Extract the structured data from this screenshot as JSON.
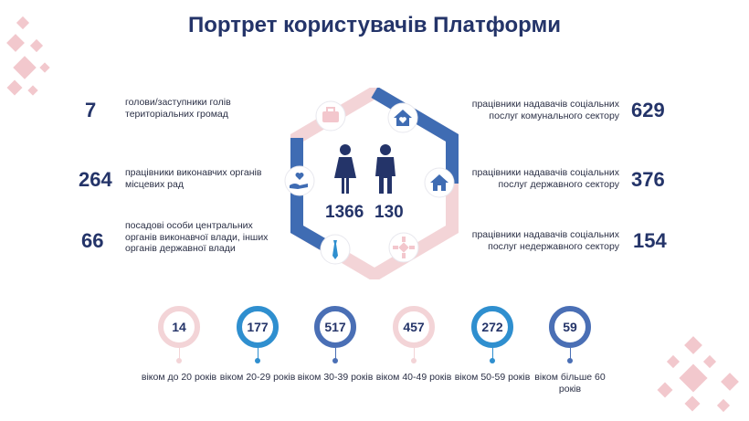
{
  "title": "Портрет користувачів Платформи",
  "left_items": [
    {
      "value": "7",
      "label": "голови/заступники голів територіальних громад"
    },
    {
      "value": "264",
      "label": "працівники виконавчих органів місцевих рад"
    },
    {
      "value": "66",
      "label": "посадові особи центральних органів виконавчої влади, інших органів державної влади"
    }
  ],
  "right_items": [
    {
      "value": "629",
      "label": "працівники надавачів соціальних послуг комунального сектору"
    },
    {
      "value": "376",
      "label": "працівники надавачів соціальних послуг державного сектору"
    },
    {
      "value": "154",
      "label": "працівники надавачів соціальних послуг недержавного сектору"
    }
  ],
  "gender": {
    "female": "1366",
    "male": "130"
  },
  "ages": [
    {
      "value": "14",
      "label": "віком до 20 років",
      "color": "#f3d4d7"
    },
    {
      "value": "177",
      "label": "віком 20-29 років",
      "color": "#2f8fcf"
    },
    {
      "value": "517",
      "label": "віком 30-39 років",
      "color": "#4a6fb5"
    },
    {
      "value": "457",
      "label": "віком 40-49 років",
      "color": "#f3d4d7"
    },
    {
      "value": "272",
      "label": "віком 50-59 років",
      "color": "#2f8fcf"
    },
    {
      "value": "59",
      "label": "віком більше 60 років",
      "color": "#4a6fb5"
    }
  ],
  "icons": {
    "top_left": "briefcase-icon",
    "top_right": "house-heart-icon",
    "mid_left": "hand-heart-icon",
    "mid_right": "house-icon",
    "bottom_left": "tie-icon",
    "bottom_right": "ornament-icon",
    "center_left": "woman-icon",
    "center_right": "man-icon"
  }
}
